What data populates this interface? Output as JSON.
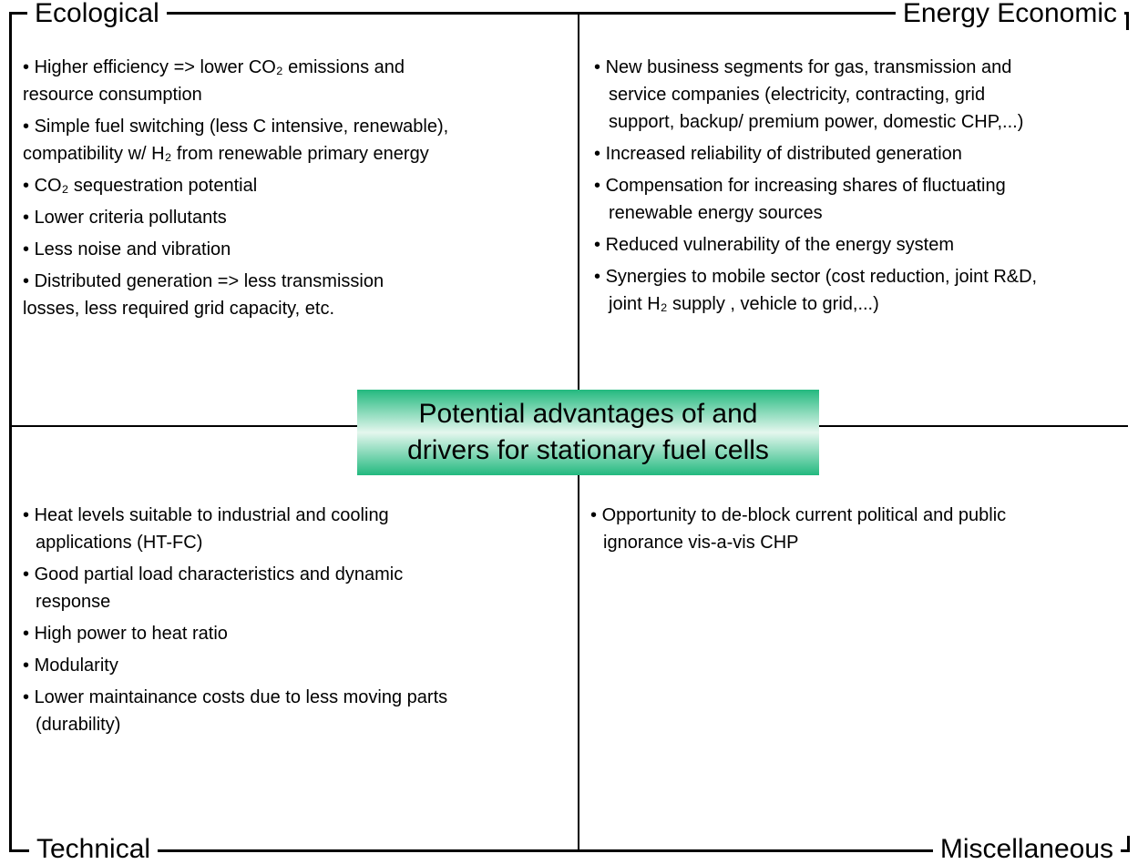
{
  "quadrants": [
    {
      "title": "Ecological",
      "items": [
        [
          "Higher efficiency => lower CO₂ emissions and",
          "resource consumption"
        ],
        [
          "Simple fuel switching (less C intensive, renewable),",
          "compatibility w/ H₂ from renewable primary energy"
        ],
        [
          "CO₂ sequestration potential"
        ],
        [
          "Lower criteria pollutants"
        ],
        [
          "Less noise and vibration"
        ],
        [
          "Distributed generation => less transmission",
          "losses, less required grid capacity, etc."
        ]
      ]
    },
    {
      "title": "Energy Economic",
      "items": [
        [
          "New business segments for gas, transmission and",
          "service companies (electricity, contracting, grid",
          "support, backup/ premium power, domestic CHP,...)"
        ],
        [
          "Increased reliability of distributed generation"
        ],
        [
          "Compensation for increasing shares of fluctuating",
          "renewable energy sources"
        ],
        [
          "Reduced vulnerability of the energy system"
        ],
        [
          "Synergies to mobile sector (cost reduction, joint R&D,",
          "joint H₂ supply , vehicle to grid,...)"
        ]
      ]
    },
    {
      "title": "Technical",
      "items": [
        [
          "Heat levels suitable to industrial and cooling",
          "applications (HT-FC)"
        ],
        [
          "Good partial load characteristics and dynamic",
          "response"
        ],
        [
          "High power to heat ratio"
        ],
        [
          "Modularity"
        ],
        [
          "Lower maintainance costs due to less moving parts",
          "(durability)"
        ]
      ]
    },
    {
      "title": "Miscellaneous",
      "items": [
        [
          "Opportunity to de-block current political and public",
          "ignorance vis-a-vis CHP"
        ]
      ]
    }
  ],
  "center": {
    "lines": [
      "Potential advantages of and",
      "drivers for stationary fuel cells"
    ]
  }
}
